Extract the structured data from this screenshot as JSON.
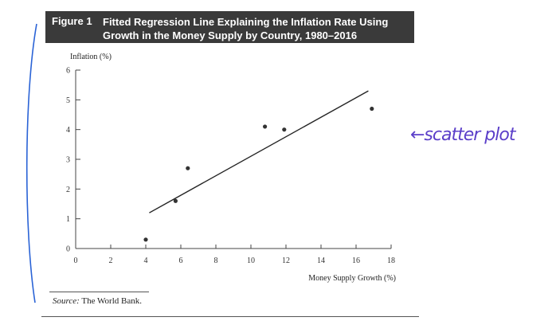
{
  "figure": {
    "number": "Figure 1",
    "title": "Fitted Regression Line Explaining the Inflation Rate Using Growth in the Money Supply by Country, 1980–2016"
  },
  "source": {
    "label": "Source:",
    "text": "The World Bank."
  },
  "annotation": {
    "text": "←scatter plot",
    "color": "#5b3fc9"
  },
  "chart_data": {
    "type": "scatter",
    "xlabel": "Money Supply Growth (%)",
    "ylabel": "Inflation (%)",
    "xlim": [
      0,
      18
    ],
    "ylim": [
      0,
      6
    ],
    "xticks": [
      0,
      2,
      4,
      6,
      8,
      10,
      12,
      14,
      16,
      18
    ],
    "yticks": [
      0,
      1,
      2,
      3,
      4,
      5,
      6
    ],
    "points": [
      {
        "x": 4.0,
        "y": 0.3
      },
      {
        "x": 5.7,
        "y": 1.6
      },
      {
        "x": 6.4,
        "y": 2.7
      },
      {
        "x": 10.8,
        "y": 4.1
      },
      {
        "x": 11.9,
        "y": 4.0
      },
      {
        "x": 16.9,
        "y": 4.7
      }
    ],
    "regression_line": {
      "x": [
        4.2,
        16.7
      ],
      "y": [
        1.2,
        5.3
      ]
    }
  }
}
